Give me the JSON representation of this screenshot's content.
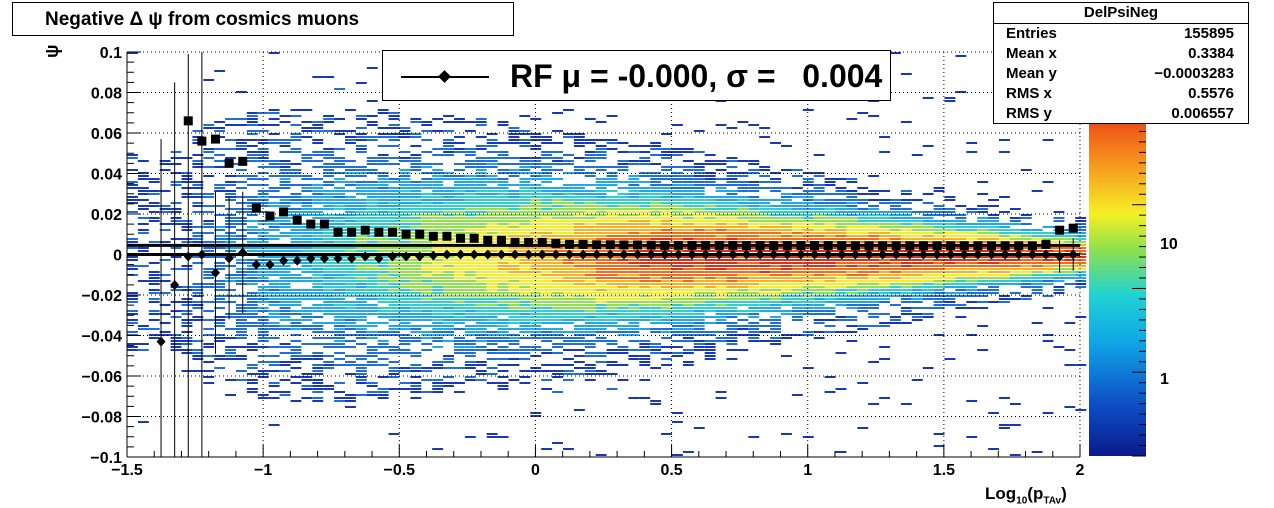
{
  "title": "Negative Δ ψ from cosmics muons",
  "stats": {
    "name": "DelPsiNeg",
    "rows": [
      {
        "label": "Entries",
        "value": "155895"
      },
      {
        "label": "Mean x",
        "value": "0.3384"
      },
      {
        "label": "Mean y",
        "value": "−0.0003283"
      },
      {
        "label": "RMS x",
        "value": "0.5576"
      },
      {
        "label": "RMS y",
        "value": "0.006557"
      }
    ]
  },
  "legend_text": "RF μ = -0.000, σ =   0.004",
  "chart_data": {
    "type": "heatmap",
    "title": "Negative Δ ψ from cosmics muons",
    "xlabel": "Log10(pTAv)",
    "ylabel": "ψ",
    "xlim": [
      -1.5,
      2
    ],
    "ylim": [
      -0.1,
      0.1
    ],
    "grid": true,
    "colorbar": {
      "scale": "log",
      "ticks": [
        1,
        10
      ],
      "tick_labels": [
        "1",
        "10"
      ]
    },
    "x_tick_labels": [
      "−1.5",
      "−1",
      "−0.5",
      "0",
      "0.5",
      "1",
      "1.5",
      "2"
    ],
    "y_tick_labels": [
      "−0.1",
      "−0.08",
      "−0.06",
      "−0.04",
      "−0.02",
      "0",
      "0.02",
      "0.04",
      "0.06",
      "0.08",
      "0.1"
    ],
    "fit_lines": [
      {
        "y": 0.0045
      },
      {
        "y": 0.0
      }
    ],
    "rms_profile": {
      "x": [
        -1.275,
        -1.225,
        -1.175,
        -1.125,
        -1.075,
        -1.025,
        -0.975,
        -0.925,
        -0.875,
        -0.825,
        -0.775,
        -0.725,
        -0.675,
        -0.625,
        -0.575,
        -0.525,
        -0.475,
        -0.425,
        -0.375,
        -0.325,
        -0.275,
        -0.225,
        -0.175,
        -0.125,
        -0.075,
        -0.025,
        0.025,
        0.075,
        0.125,
        0.175,
        0.225,
        0.275,
        0.325,
        0.375,
        0.425,
        0.475,
        0.525,
        0.575,
        0.625,
        0.675,
        0.725,
        0.775,
        0.825,
        0.875,
        0.925,
        0.975,
        1.025,
        1.075,
        1.125,
        1.175,
        1.225,
        1.275,
        1.325,
        1.375,
        1.425,
        1.475,
        1.525,
        1.575,
        1.625,
        1.675,
        1.725,
        1.775,
        1.825,
        1.875,
        1.925,
        1.975
      ],
      "y": [
        0.066,
        0.056,
        0.057,
        0.045,
        0.046,
        0.023,
        0.019,
        0.021,
        0.017,
        0.015,
        0.015,
        0.011,
        0.011,
        0.012,
        0.011,
        0.011,
        0.01,
        0.01,
        0.009,
        0.009,
        0.008,
        0.008,
        0.007,
        0.007,
        0.006,
        0.006,
        0.006,
        0.0055,
        0.005,
        0.005,
        0.0048,
        0.0048,
        0.0047,
        0.0047,
        0.0046,
        0.0045,
        0.0045,
        0.0045,
        0.0045,
        0.0045,
        0.0045,
        0.0044,
        0.0044,
        0.0044,
        0.0044,
        0.0044,
        0.0044,
        0.0044,
        0.0044,
        0.0043,
        0.0043,
        0.0043,
        0.0043,
        0.0043,
        0.0043,
        0.0043,
        0.0043,
        0.0043,
        0.0043,
        0.0043,
        0.0043,
        0.0043,
        0.0043,
        0.005,
        0.012,
        0.013
      ]
    },
    "mean_profile": {
      "x": [
        -1.375,
        -1.325,
        -1.275,
        -1.225,
        -1.175,
        -1.125,
        -1.075,
        -1.025,
        -0.975,
        -0.925,
        -0.875,
        -0.825,
        -0.775,
        -0.725,
        -0.675,
        -0.625,
        -0.575,
        -0.525,
        -0.475,
        -0.425,
        -0.375,
        -0.325,
        -0.275,
        -0.225,
        -0.175,
        -0.125,
        -0.075,
        -0.025,
        0.025,
        0.075,
        0.125,
        0.175,
        0.225,
        0.275,
        0.325,
        0.375,
        0.425,
        0.475,
        0.525,
        0.575,
        0.625,
        0.675,
        0.725,
        0.775,
        0.825,
        0.875,
        0.925,
        0.975,
        1.025,
        1.075,
        1.125,
        1.175,
        1.225,
        1.275,
        1.325,
        1.375,
        1.425,
        1.475,
        1.525,
        1.575,
        1.625,
        1.675,
        1.725,
        1.775,
        1.825,
        1.875,
        1.925,
        1.975
      ],
      "y": [
        -0.043,
        -0.015,
        -0.001,
        0.0,
        -0.009,
        -0.002,
        0.001,
        -0.005,
        -0.005,
        -0.003,
        -0.003,
        -0.002,
        -0.002,
        -0.002,
        -0.002,
        -0.001,
        -0.002,
        -0.001,
        -0.001,
        -0.001,
        -0.0005,
        0.0,
        0.0,
        0.0,
        0.0,
        0.0,
        0.0,
        0.0,
        0.0,
        0.0,
        0.0,
        0.0,
        0.0,
        0.0,
        0.0,
        0.0,
        0.0,
        0.0,
        0.0,
        0.0,
        0.0,
        0.0,
        0.0,
        0.0,
        0.0,
        0.0,
        0.0,
        0.0,
        0.0,
        0.0,
        0.0,
        0.0,
        0.0,
        0.0,
        0.0,
        0.0,
        0.0,
        0.0,
        0.0,
        0.0,
        0.0,
        0.0,
        0.0,
        0.0,
        0.0,
        0.0,
        -0.001,
        0.0
      ],
      "err": [
        0.1,
        0.1,
        0.1,
        0.1,
        0.04,
        0.03,
        0.03,
        0.0,
        0.0,
        0.0,
        0.0,
        0.0,
        0.0,
        0.0,
        0.0,
        0.0,
        0.0,
        0.0,
        0.0,
        0.0,
        0.0,
        0.0,
        0.0,
        0.0,
        0.0,
        0.0,
        0.0,
        0.0,
        0.0,
        0.0,
        0.0,
        0.0,
        0.0,
        0.0,
        0.0,
        0.0,
        0.0,
        0.0,
        0.0,
        0.0,
        0.0,
        0.0,
        0.0,
        0.0,
        0.0,
        0.0,
        0.0,
        0.0,
        0.0,
        0.0,
        0.0,
        0.0,
        0.0,
        0.0,
        0.0,
        0.0,
        0.0,
        0.0,
        0.0,
        0.0,
        0.0,
        0.0,
        0.0,
        0.0,
        0.0,
        0.0,
        0.008,
        0.008
      ]
    }
  }
}
